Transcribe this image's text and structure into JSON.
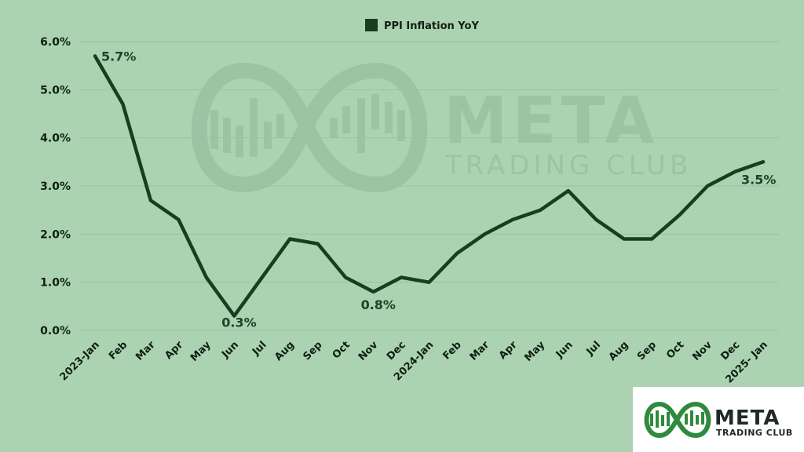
{
  "chart_data": {
    "type": "line",
    "categories": [
      "2023-Jan",
      "Feb",
      "Mar",
      "Apr",
      "May",
      "Jun",
      "Jul",
      "Aug",
      "Sep",
      "Oct",
      "Nov",
      "Dec",
      "2024-Jan",
      "Feb",
      "Mar",
      "Apr",
      "May",
      "Jun",
      "Jul",
      "Aug",
      "Sep",
      "Oct",
      "Nov",
      "Dec",
      "2025- Jan"
    ],
    "series": [
      {
        "name": "PPI Inflation YoY",
        "values": [
          5.7,
          4.7,
          2.7,
          2.3,
          1.1,
          0.3,
          1.1,
          1.9,
          1.8,
          1.1,
          0.8,
          1.1,
          1.0,
          1.6,
          2.0,
          2.3,
          2.5,
          2.9,
          2.3,
          1.9,
          1.9,
          2.4,
          3.0,
          3.3,
          3.5
        ],
        "color": "#183d1f"
      }
    ],
    "ylim": [
      0,
      6
    ],
    "yticks": [
      "0.0%",
      "1.0%",
      "2.0%",
      "3.0%",
      "4.0%",
      "5.0%",
      "6.0%"
    ],
    "grid": true,
    "legend_position": "top-center",
    "annotations": [
      {
        "index": 0,
        "text": "5.7%"
      },
      {
        "index": 5,
        "text": "0.3%"
      },
      {
        "index": 10,
        "text": "0.8%"
      },
      {
        "index": 24,
        "text": "3.5%"
      }
    ]
  },
  "watermark": {
    "line1": "META",
    "line2": "TRADING CLUB"
  },
  "logo": {
    "line1": "META",
    "line2": "TRADING CLUB",
    "color": "#2e8b3e"
  },
  "colors": {
    "background": "#acd3b1",
    "grid": "#98c2a0",
    "line": "#183d1f"
  }
}
